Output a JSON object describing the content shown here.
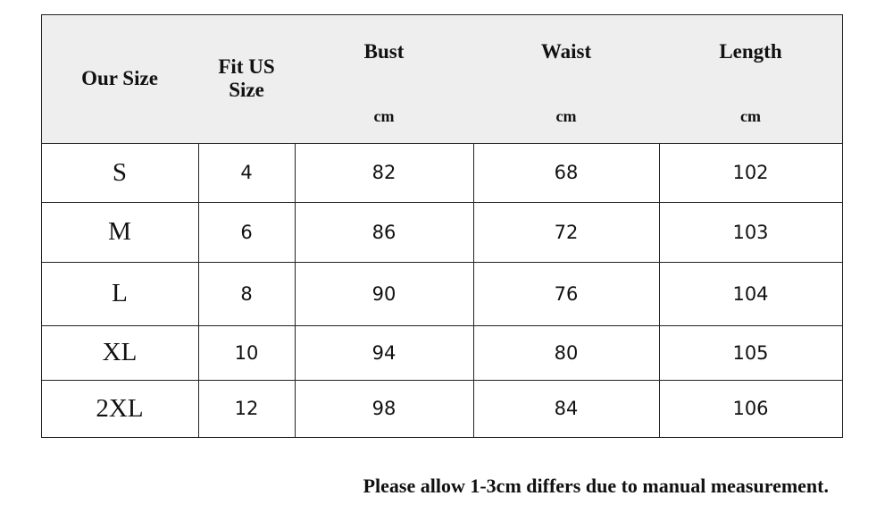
{
  "header": {
    "our_size": "Our Size",
    "fit_us_size": "Fit US Size",
    "columns": [
      "Bust",
      "Waist",
      "Length"
    ],
    "units": [
      "cm",
      "cm",
      "cm"
    ]
  },
  "table": {
    "rows": [
      [
        "S",
        4,
        82,
        68,
        102
      ],
      [
        "M",
        6,
        86,
        72,
        103
      ],
      [
        "L",
        8,
        90,
        76,
        104
      ],
      [
        "XL",
        10,
        94,
        80,
        105
      ],
      [
        "2XL",
        12,
        98,
        84,
        106
      ]
    ]
  },
  "note": "Please allow 1-3cm differs due to manual measurement."
}
